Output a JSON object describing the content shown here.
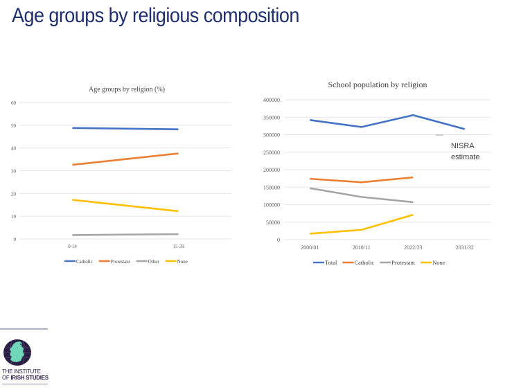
{
  "slide": {
    "title": "Age groups by religious composition",
    "logo": {
      "line1": "THE INSTITUTE",
      "line2_prefix": "OF ",
      "line2_bold": "IRISH STUDIES",
      "icon": "ireland-globe-icon",
      "colors": {
        "circle": "#2a1e45",
        "island": "#6fd6b8"
      }
    }
  },
  "chart_data": [
    {
      "type": "line",
      "title": "Age groups by religion (%)",
      "xlabel": "",
      "ylabel": "",
      "categories": [
        "0-14",
        "15-39"
      ],
      "ylim": [
        0,
        60
      ],
      "yticks": [
        0,
        10,
        20,
        30,
        40,
        50,
        60
      ],
      "grid": true,
      "legend_position": "bottom",
      "series": [
        {
          "name": "Catholic",
          "color": "#4472c4",
          "values": [
            48.8,
            48.2
          ]
        },
        {
          "name": "Protestant",
          "color": "#ed7d31",
          "values": [
            32.6,
            37.6
          ]
        },
        {
          "name": "Other",
          "color": "#a5a5a5",
          "values": [
            1.7,
            2.1
          ]
        },
        {
          "name": "None",
          "color": "#ffc000",
          "values": [
            17.2,
            12.2
          ]
        }
      ]
    },
    {
      "type": "line",
      "title": "School population by religion",
      "xlabel": "",
      "ylabel": "",
      "categories": [
        "2000/01",
        "2010/11",
        "2022/23",
        "2031/32"
      ],
      "ylim": [
        0,
        400000
      ],
      "yticks": [
        0,
        50000,
        100000,
        150000,
        200000,
        250000,
        300000,
        350000,
        400000
      ],
      "grid": true,
      "legend_position": "bottom",
      "series": [
        {
          "name": "Total",
          "color": "#4472c4",
          "values": [
            342000,
            322000,
            356000,
            316000
          ]
        },
        {
          "name": "Catholic",
          "color": "#ed7d31",
          "values": [
            174000,
            164000,
            178000,
            null
          ]
        },
        {
          "name": "Protestant",
          "color": "#a5a5a5",
          "values": [
            147000,
            122000,
            107000,
            null
          ]
        },
        {
          "name": "None",
          "color": "#ffc000",
          "values": [
            17000,
            28000,
            71000,
            null
          ]
        }
      ],
      "annotations": [
        {
          "text_lines": [
            "NISRA",
            "estimate"
          ],
          "refers_to": "2031/32 Total"
        }
      ]
    }
  ]
}
